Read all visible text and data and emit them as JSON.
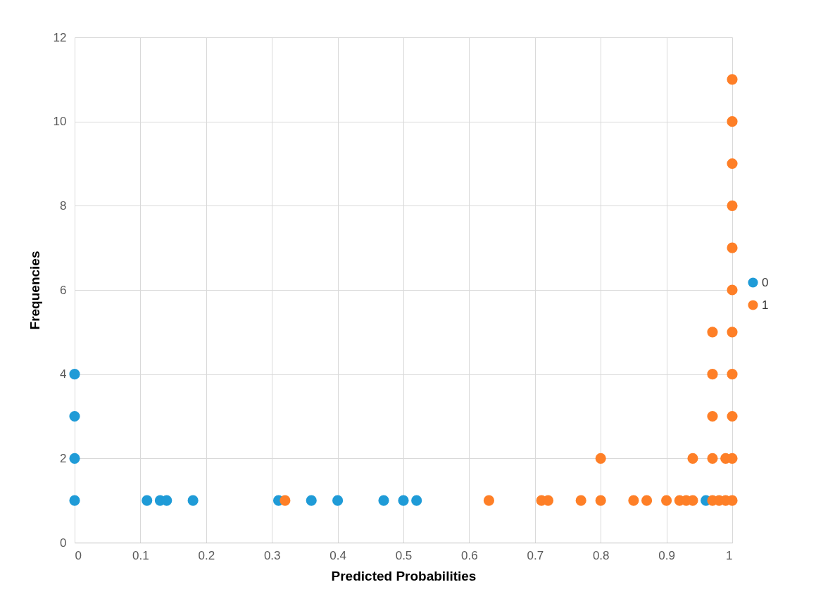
{
  "chart_data": {
    "type": "scatter",
    "xlabel": "Predicted Probabilities",
    "ylabel": "Frequencies",
    "xlim": [
      0,
      1
    ],
    "xticks": [
      0,
      0.1,
      0.2,
      0.3,
      0.4,
      0.5,
      0.6,
      0.7,
      0.8,
      0.9,
      1
    ],
    "ylim": [
      0,
      12
    ],
    "yticks": [
      0,
      2,
      4,
      6,
      8,
      10,
      12
    ],
    "grid": true,
    "legend": "right",
    "marker": "circle",
    "series": [
      {
        "name": "0",
        "color": "#1f9bd7",
        "x": [
          0,
          0,
          0,
          0,
          0.11,
          0.13,
          0.14,
          0.18,
          0.31,
          0.36,
          0.4,
          0.47,
          0.5,
          0.52,
          0.96
        ],
        "values": [
          1,
          2,
          3,
          4,
          1,
          1,
          1,
          1,
          1,
          1,
          1,
          1,
          1,
          1,
          1
        ]
      },
      {
        "name": "1",
        "color": "#fe7f27",
        "x": [
          0.32,
          0.63,
          0.71,
          0.72,
          0.77,
          0.8,
          0.8,
          0.85,
          0.87,
          0.9,
          0.92,
          0.93,
          0.94,
          0.94,
          0.97,
          0.97,
          0.97,
          0.97,
          0.97,
          0.98,
          0.99,
          0.99,
          1,
          1,
          1,
          1,
          1,
          1,
          1,
          1,
          1,
          1,
          1
        ],
        "values": [
          1,
          1,
          1,
          1,
          1,
          1,
          2,
          1,
          1,
          1,
          1,
          1,
          1,
          2,
          1,
          2,
          3,
          4,
          5,
          1,
          1,
          2,
          1,
          2,
          3,
          4,
          5,
          6,
          7,
          8,
          9,
          10,
          11
        ]
      }
    ]
  }
}
